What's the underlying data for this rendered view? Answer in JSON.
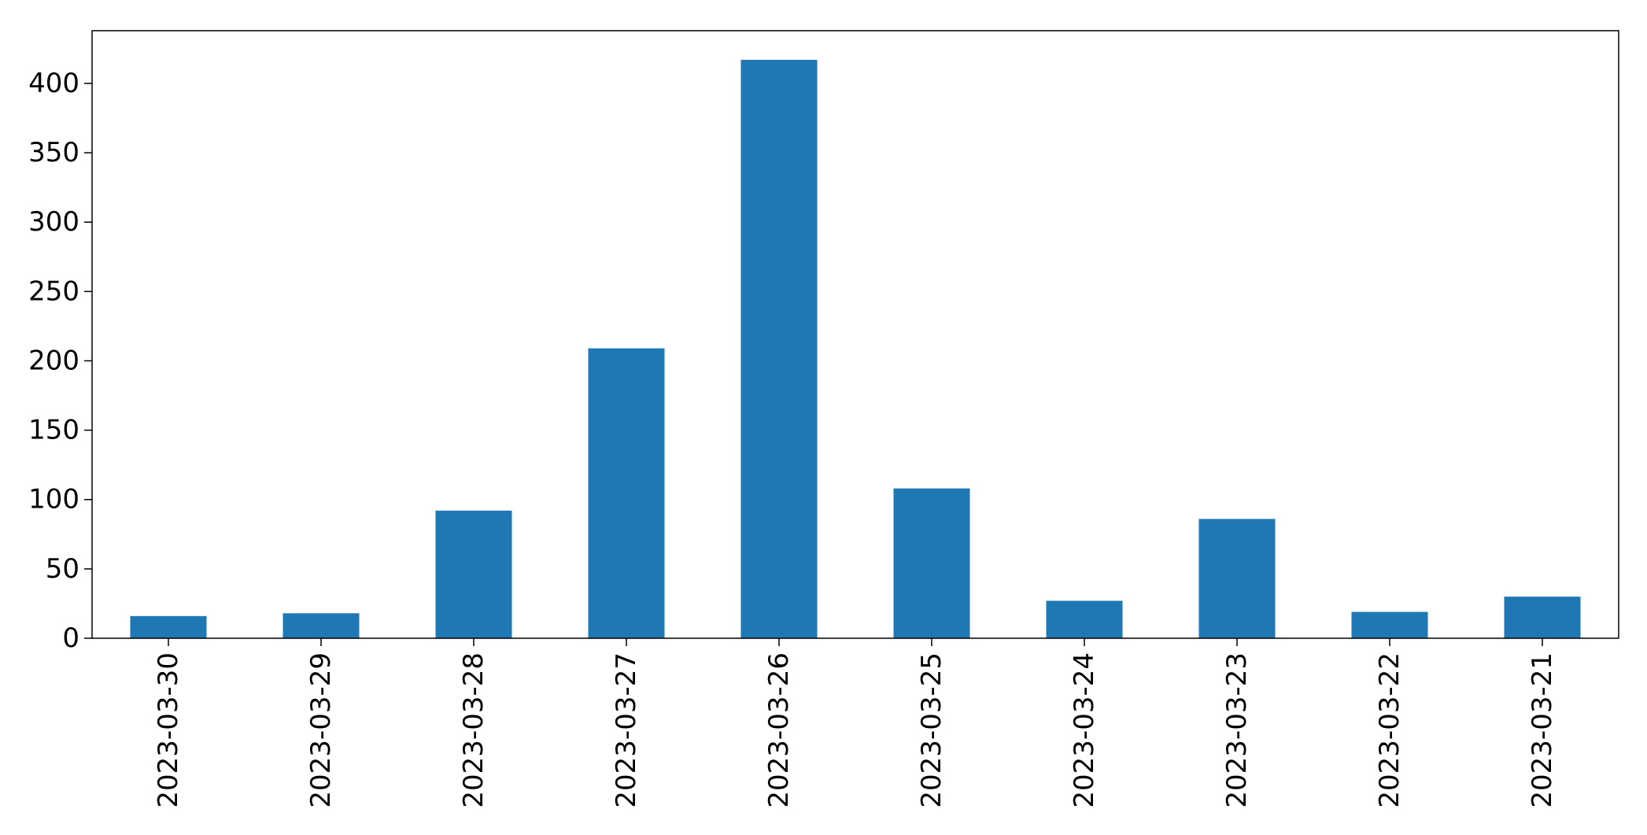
{
  "chart_data": {
    "type": "bar",
    "title": "",
    "xlabel": "",
    "ylabel": "",
    "categories": [
      "2023-03-30",
      "2023-03-29",
      "2023-03-28",
      "2023-03-27",
      "2023-03-26",
      "2023-03-25",
      "2023-03-24",
      "2023-03-23",
      "2023-03-22",
      "2023-03-21"
    ],
    "values": [
      16,
      18,
      92,
      209,
      417,
      108,
      27,
      86,
      19,
      30
    ],
    "ylim": [
      0,
      438
    ],
    "yticks": [
      0,
      50,
      100,
      150,
      200,
      250,
      300,
      350,
      400
    ],
    "grid": false,
    "legend": "none",
    "colors": {
      "bar": "#1f77b4",
      "axis": "#000000",
      "background": "#ffffff"
    }
  }
}
